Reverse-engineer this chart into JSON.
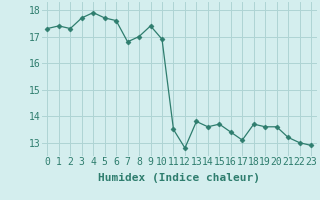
{
  "x": [
    0,
    1,
    2,
    3,
    4,
    5,
    6,
    7,
    8,
    9,
    10,
    11,
    12,
    13,
    14,
    15,
    16,
    17,
    18,
    19,
    20,
    21,
    22,
    23
  ],
  "y": [
    17.3,
    17.4,
    17.3,
    17.7,
    17.9,
    17.7,
    17.6,
    16.8,
    17.0,
    17.4,
    16.9,
    13.5,
    12.8,
    13.8,
    13.6,
    13.7,
    13.4,
    13.1,
    13.7,
    13.6,
    13.6,
    13.2,
    13.0,
    12.9
  ],
  "line_color": "#2e7d6e",
  "marker": "D",
  "marker_size": 2.5,
  "bg_color": "#d4eeee",
  "grid_color": "#aed4d4",
  "xlabel": "Humidex (Indice chaleur)",
  "xlabel_fontsize": 8,
  "ylim": [
    12.5,
    18.3
  ],
  "yticks": [
    13,
    14,
    15,
    16,
    17,
    18
  ],
  "xticks": [
    0,
    1,
    2,
    3,
    4,
    5,
    6,
    7,
    8,
    9,
    10,
    11,
    12,
    13,
    14,
    15,
    16,
    17,
    18,
    19,
    20,
    21,
    22,
    23
  ],
  "tick_fontsize": 7
}
